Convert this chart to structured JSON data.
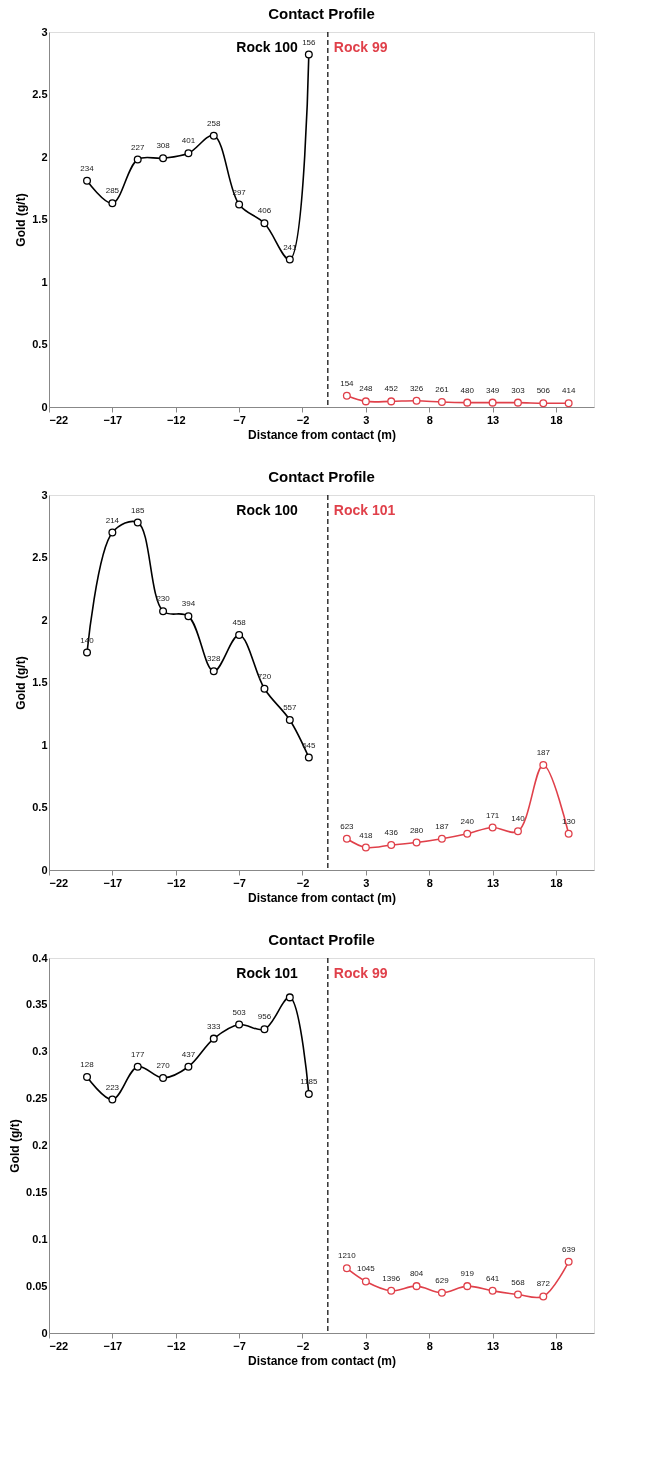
{
  "chart_data": [
    {
      "type": "line",
      "title": "Contact Profile",
      "xlabel": "Distance from contact (m)",
      "ylabel": "Gold (g/t)",
      "xlim": [
        -22,
        21
      ],
      "xticks": [
        -22,
        -17,
        -12,
        -7,
        -2,
        3,
        8,
        13,
        18
      ],
      "ylim": [
        0,
        3
      ],
      "yticks": [
        0,
        0.5,
        1,
        1.5,
        2,
        2.5,
        3
      ],
      "grid": false,
      "marker": "circle",
      "line_style": "solid",
      "ref_lines": [
        {
          "axis": "x",
          "value": 0,
          "line_style": "dashed",
          "color": "#000000"
        }
      ],
      "series": [
        {
          "name": "Rock 100",
          "color": "#000000",
          "x": [
            -19,
            -17,
            -15,
            -13,
            -11,
            -9,
            -7,
            -5,
            -3,
            -1.5
          ],
          "values": [
            1.81,
            1.63,
            1.98,
            1.99,
            2.03,
            2.17,
            1.62,
            1.47,
            1.18,
            2.82
          ]
        },
        {
          "name": "Rock 99",
          "color": "#e0404a",
          "x": [
            1.5,
            3,
            5,
            7,
            9,
            11,
            13,
            15,
            17,
            19
          ],
          "values": [
            0.09,
            0.045,
            0.045,
            0.05,
            0.04,
            0.035,
            0.035,
            0.035,
            0.03,
            0.03
          ]
        }
      ],
      "annotations": [
        {
          "text": "234",
          "x": -19,
          "y": 1.81
        },
        {
          "text": "285",
          "x": -17,
          "y": 1.63
        },
        {
          "text": "227",
          "x": -15,
          "y": 1.98
        },
        {
          "text": "308",
          "x": -13,
          "y": 1.99
        },
        {
          "text": "401",
          "x": -11,
          "y": 2.03
        },
        {
          "text": "258",
          "x": -9,
          "y": 2.17
        },
        {
          "text": "297",
          "x": -7,
          "y": 1.62
        },
        {
          "text": "406",
          "x": -5,
          "y": 1.47
        },
        {
          "text": "241",
          "x": -3,
          "y": 1.18
        },
        {
          "text": "156",
          "x": -1.5,
          "y": 2.82
        },
        {
          "text": "154",
          "x": 1.5,
          "y": 0.09
        },
        {
          "text": "248",
          "x": 3,
          "y": 0.045
        },
        {
          "text": "452",
          "x": 5,
          "y": 0.045
        },
        {
          "text": "326",
          "x": 7,
          "y": 0.05
        },
        {
          "text": "261",
          "x": 9,
          "y": 0.04
        },
        {
          "text": "480",
          "x": 11,
          "y": 0.035
        },
        {
          "text": "349",
          "x": 13,
          "y": 0.035
        },
        {
          "text": "303",
          "x": 15,
          "y": 0.035
        },
        {
          "text": "506",
          "x": 17,
          "y": 0.03
        },
        {
          "text": "414",
          "x": 19,
          "y": 0.03
        }
      ]
    },
    {
      "type": "line",
      "title": "Contact Profile",
      "xlabel": "Distance from contact (m)",
      "ylabel": "Gold (g/t)",
      "xlim": [
        -22,
        21
      ],
      "xticks": [
        -22,
        -17,
        -12,
        -7,
        -2,
        3,
        8,
        13,
        18
      ],
      "ylim": [
        0,
        3
      ],
      "yticks": [
        0,
        0.5,
        1,
        1.5,
        2,
        2.5,
        3
      ],
      "grid": false,
      "marker": "circle",
      "line_style": "solid",
      "ref_lines": [
        {
          "axis": "x",
          "value": 0,
          "line_style": "dashed",
          "color": "#000000"
        }
      ],
      "series": [
        {
          "name": "Rock 100",
          "color": "#000000",
          "x": [
            -19,
            -17,
            -15,
            -13,
            -11,
            -9,
            -7,
            -5,
            -3,
            -1.5
          ],
          "values": [
            1.74,
            2.7,
            2.78,
            2.07,
            2.03,
            1.59,
            1.88,
            1.45,
            1.2,
            0.9
          ]
        },
        {
          "name": "Rock 101",
          "color": "#e0404a",
          "x": [
            1.5,
            3,
            5,
            7,
            9,
            11,
            13,
            15,
            17,
            19
          ],
          "values": [
            0.25,
            0.18,
            0.2,
            0.22,
            0.25,
            0.29,
            0.34,
            0.31,
            0.84,
            0.29
          ]
        }
      ],
      "annotations": [
        {
          "text": "140",
          "x": -19,
          "y": 1.74
        },
        {
          "text": "214",
          "x": -17,
          "y": 2.7
        },
        {
          "text": "185",
          "x": -15,
          "y": 2.78
        },
        {
          "text": "230",
          "x": -13,
          "y": 2.07
        },
        {
          "text": "394",
          "x": -11,
          "y": 2.03
        },
        {
          "text": "328",
          "x": -9,
          "y": 1.59
        },
        {
          "text": "458",
          "x": -7,
          "y": 1.88
        },
        {
          "text": "720",
          "x": -5,
          "y": 1.45
        },
        {
          "text": "557",
          "x": -3,
          "y": 1.2
        },
        {
          "text": "645",
          "x": -1.5,
          "y": 0.9
        },
        {
          "text": "623",
          "x": 1.5,
          "y": 0.25
        },
        {
          "text": "418",
          "x": 3,
          "y": 0.18
        },
        {
          "text": "436",
          "x": 5,
          "y": 0.2
        },
        {
          "text": "280",
          "x": 7,
          "y": 0.22
        },
        {
          "text": "187",
          "x": 9,
          "y": 0.25
        },
        {
          "text": "240",
          "x": 11,
          "y": 0.29
        },
        {
          "text": "171",
          "x": 13,
          "y": 0.34
        },
        {
          "text": "140",
          "x": 15,
          "y": 0.31
        },
        {
          "text": "187",
          "x": 17,
          "y": 0.84
        },
        {
          "text": "130",
          "x": 19,
          "y": 0.29
        }
      ]
    },
    {
      "type": "line",
      "title": "Contact Profile",
      "xlabel": "Distance from contact (m)",
      "ylabel": "Gold (g/t)",
      "xlim": [
        -22,
        21
      ],
      "xticks": [
        -22,
        -17,
        -12,
        -7,
        -2,
        3,
        8,
        13,
        18
      ],
      "ylim": [
        0,
        0.4
      ],
      "yticks": [
        0,
        0.05,
        0.1,
        0.15,
        0.2,
        0.25,
        0.3,
        0.35,
        0.4
      ],
      "grid": false,
      "marker": "circle",
      "line_style": "solid",
      "ref_lines": [
        {
          "axis": "x",
          "value": 0,
          "line_style": "dashed",
          "color": "#000000"
        }
      ],
      "series": [
        {
          "name": "Rock 101",
          "color": "#000000",
          "x": [
            -19,
            -17,
            -15,
            -13,
            -11,
            -9,
            -7,
            -5,
            -3,
            -1.5
          ],
          "values": [
            0.273,
            0.249,
            0.284,
            0.272,
            0.284,
            0.314,
            0.329,
            0.324,
            0.358,
            0.255
          ]
        },
        {
          "name": "Rock 99",
          "color": "#e0404a",
          "x": [
            1.5,
            3,
            5,
            7,
            9,
            11,
            13,
            15,
            17,
            19
          ],
          "values": [
            0.069,
            0.055,
            0.045,
            0.05,
            0.043,
            0.05,
            0.045,
            0.041,
            0.039,
            0.076
          ]
        }
      ],
      "annotations": [
        {
          "text": "128",
          "x": -19,
          "y": 0.273
        },
        {
          "text": "223",
          "x": -17,
          "y": 0.249
        },
        {
          "text": "177",
          "x": -15,
          "y": 0.284
        },
        {
          "text": "270",
          "x": -13,
          "y": 0.272
        },
        {
          "text": "437",
          "x": -11,
          "y": 0.284
        },
        {
          "text": "333",
          "x": -9,
          "y": 0.314
        },
        {
          "text": "503",
          "x": -7,
          "y": 0.329
        },
        {
          "text": "956",
          "x": -5,
          "y": 0.324
        },
        {
          "text": "1185",
          "x": -1.5,
          "y": 0.255
        },
        {
          "text": "1210",
          "x": 1.5,
          "y": 0.069
        },
        {
          "text": "1045",
          "x": 3,
          "y": 0.055
        },
        {
          "text": "1396",
          "x": 5,
          "y": 0.045
        },
        {
          "text": "804",
          "x": 7,
          "y": 0.05
        },
        {
          "text": "629",
          "x": 9,
          "y": 0.043
        },
        {
          "text": "919",
          "x": 11,
          "y": 0.05
        },
        {
          "text": "641",
          "x": 13,
          "y": 0.045
        },
        {
          "text": "568",
          "x": 15,
          "y": 0.041
        },
        {
          "text": "872",
          "x": 17,
          "y": 0.039
        },
        {
          "text": "639",
          "x": 19,
          "y": 0.076
        }
      ]
    }
  ]
}
